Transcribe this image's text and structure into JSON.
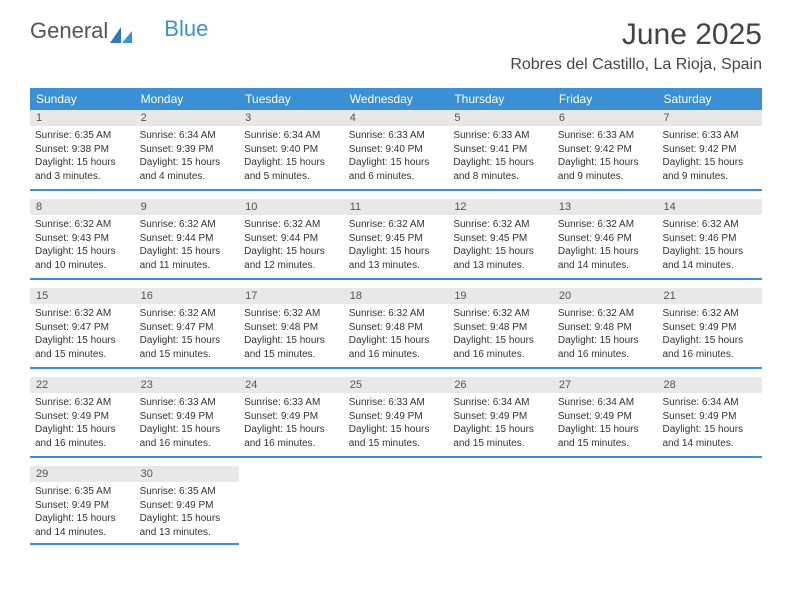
{
  "brand": {
    "part1": "General",
    "part2": "Blue"
  },
  "title": "June 2025",
  "location": "Robres del Castillo, La Rioja, Spain",
  "colors": {
    "accent": "#3b8fd4",
    "dayHeaderBg": "#e8e8e8",
    "text": "#333333",
    "background": "#ffffff"
  },
  "calendar": {
    "dow_bg": "#3b8fd4",
    "dow_color": "#ffffff",
    "dow_fontsize": 12,
    "cell_fontsize": 10,
    "days_of_week": [
      "Sunday",
      "Monday",
      "Tuesday",
      "Wednesday",
      "Thursday",
      "Friday",
      "Saturday"
    ],
    "weeks": [
      [
        {
          "n": "1",
          "sunrise": "Sunrise: 6:35 AM",
          "sunset": "Sunset: 9:38 PM",
          "daylight": "Daylight: 15 hours and 3 minutes."
        },
        {
          "n": "2",
          "sunrise": "Sunrise: 6:34 AM",
          "sunset": "Sunset: 9:39 PM",
          "daylight": "Daylight: 15 hours and 4 minutes."
        },
        {
          "n": "3",
          "sunrise": "Sunrise: 6:34 AM",
          "sunset": "Sunset: 9:40 PM",
          "daylight": "Daylight: 15 hours and 5 minutes."
        },
        {
          "n": "4",
          "sunrise": "Sunrise: 6:33 AM",
          "sunset": "Sunset: 9:40 PM",
          "daylight": "Daylight: 15 hours and 6 minutes."
        },
        {
          "n": "5",
          "sunrise": "Sunrise: 6:33 AM",
          "sunset": "Sunset: 9:41 PM",
          "daylight": "Daylight: 15 hours and 8 minutes."
        },
        {
          "n": "6",
          "sunrise": "Sunrise: 6:33 AM",
          "sunset": "Sunset: 9:42 PM",
          "daylight": "Daylight: 15 hours and 9 minutes."
        },
        {
          "n": "7",
          "sunrise": "Sunrise: 6:33 AM",
          "sunset": "Sunset: 9:42 PM",
          "daylight": "Daylight: 15 hours and 9 minutes."
        }
      ],
      [
        {
          "n": "8",
          "sunrise": "Sunrise: 6:32 AM",
          "sunset": "Sunset: 9:43 PM",
          "daylight": "Daylight: 15 hours and 10 minutes."
        },
        {
          "n": "9",
          "sunrise": "Sunrise: 6:32 AM",
          "sunset": "Sunset: 9:44 PM",
          "daylight": "Daylight: 15 hours and 11 minutes."
        },
        {
          "n": "10",
          "sunrise": "Sunrise: 6:32 AM",
          "sunset": "Sunset: 9:44 PM",
          "daylight": "Daylight: 15 hours and 12 minutes."
        },
        {
          "n": "11",
          "sunrise": "Sunrise: 6:32 AM",
          "sunset": "Sunset: 9:45 PM",
          "daylight": "Daylight: 15 hours and 13 minutes."
        },
        {
          "n": "12",
          "sunrise": "Sunrise: 6:32 AM",
          "sunset": "Sunset: 9:45 PM",
          "daylight": "Daylight: 15 hours and 13 minutes."
        },
        {
          "n": "13",
          "sunrise": "Sunrise: 6:32 AM",
          "sunset": "Sunset: 9:46 PM",
          "daylight": "Daylight: 15 hours and 14 minutes."
        },
        {
          "n": "14",
          "sunrise": "Sunrise: 6:32 AM",
          "sunset": "Sunset: 9:46 PM",
          "daylight": "Daylight: 15 hours and 14 minutes."
        }
      ],
      [
        {
          "n": "15",
          "sunrise": "Sunrise: 6:32 AM",
          "sunset": "Sunset: 9:47 PM",
          "daylight": "Daylight: 15 hours and 15 minutes."
        },
        {
          "n": "16",
          "sunrise": "Sunrise: 6:32 AM",
          "sunset": "Sunset: 9:47 PM",
          "daylight": "Daylight: 15 hours and 15 minutes."
        },
        {
          "n": "17",
          "sunrise": "Sunrise: 6:32 AM",
          "sunset": "Sunset: 9:48 PM",
          "daylight": "Daylight: 15 hours and 15 minutes."
        },
        {
          "n": "18",
          "sunrise": "Sunrise: 6:32 AM",
          "sunset": "Sunset: 9:48 PM",
          "daylight": "Daylight: 15 hours and 16 minutes."
        },
        {
          "n": "19",
          "sunrise": "Sunrise: 6:32 AM",
          "sunset": "Sunset: 9:48 PM",
          "daylight": "Daylight: 15 hours and 16 minutes."
        },
        {
          "n": "20",
          "sunrise": "Sunrise: 6:32 AM",
          "sunset": "Sunset: 9:48 PM",
          "daylight": "Daylight: 15 hours and 16 minutes."
        },
        {
          "n": "21",
          "sunrise": "Sunrise: 6:32 AM",
          "sunset": "Sunset: 9:49 PM",
          "daylight": "Daylight: 15 hours and 16 minutes."
        }
      ],
      [
        {
          "n": "22",
          "sunrise": "Sunrise: 6:32 AM",
          "sunset": "Sunset: 9:49 PM",
          "daylight": "Daylight: 15 hours and 16 minutes."
        },
        {
          "n": "23",
          "sunrise": "Sunrise: 6:33 AM",
          "sunset": "Sunset: 9:49 PM",
          "daylight": "Daylight: 15 hours and 16 minutes."
        },
        {
          "n": "24",
          "sunrise": "Sunrise: 6:33 AM",
          "sunset": "Sunset: 9:49 PM",
          "daylight": "Daylight: 15 hours and 16 minutes."
        },
        {
          "n": "25",
          "sunrise": "Sunrise: 6:33 AM",
          "sunset": "Sunset: 9:49 PM",
          "daylight": "Daylight: 15 hours and 15 minutes."
        },
        {
          "n": "26",
          "sunrise": "Sunrise: 6:34 AM",
          "sunset": "Sunset: 9:49 PM",
          "daylight": "Daylight: 15 hours and 15 minutes."
        },
        {
          "n": "27",
          "sunrise": "Sunrise: 6:34 AM",
          "sunset": "Sunset: 9:49 PM",
          "daylight": "Daylight: 15 hours and 15 minutes."
        },
        {
          "n": "28",
          "sunrise": "Sunrise: 6:34 AM",
          "sunset": "Sunset: 9:49 PM",
          "daylight": "Daylight: 15 hours and 14 minutes."
        }
      ],
      [
        {
          "n": "29",
          "sunrise": "Sunrise: 6:35 AM",
          "sunset": "Sunset: 9:49 PM",
          "daylight": "Daylight: 15 hours and 14 minutes."
        },
        {
          "n": "30",
          "sunrise": "Sunrise: 6:35 AM",
          "sunset": "Sunset: 9:49 PM",
          "daylight": "Daylight: 15 hours and 13 minutes."
        },
        null,
        null,
        null,
        null,
        null
      ]
    ]
  }
}
